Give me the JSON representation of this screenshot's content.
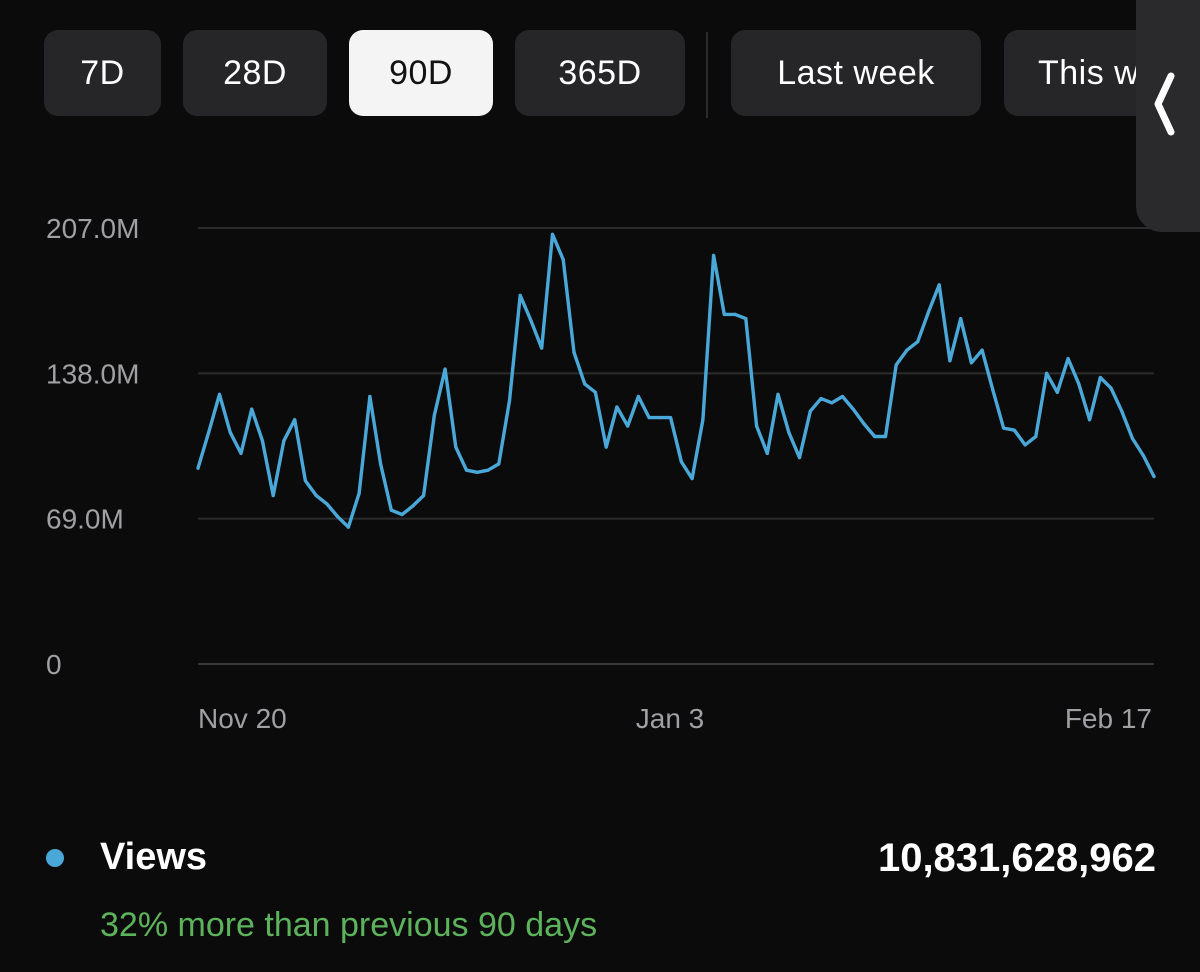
{
  "range_tabs": [
    {
      "label": "7D",
      "active": false
    },
    {
      "label": "28D",
      "active": false
    },
    {
      "label": "90D",
      "active": true
    },
    {
      "label": "365D",
      "active": false
    },
    {
      "label": "Last week",
      "active": false
    },
    {
      "label": "This week",
      "active": false
    }
  ],
  "side_handle": {
    "icon": "chevron-left-icon"
  },
  "chart_data": {
    "type": "line",
    "y_ticks": [
      "207.0M",
      "138.0M",
      "69.0M",
      "0"
    ],
    "y_tick_values": [
      207000000,
      138000000,
      69000000,
      0
    ],
    "ylim": [
      0,
      207000000
    ],
    "x_ticks": [
      "Nov 20",
      "Jan 3",
      "Feb 17"
    ],
    "grid": true,
    "line_color": "#4aa8d8",
    "series": [
      {
        "name": "Views",
        "values": [
          93000000.0,
          110000000.0,
          128000000.0,
          110000000.0,
          100000000.0,
          121000000.0,
          106000000.0,
          80000000.0,
          106000000.0,
          116000000.0,
          87000000.0,
          80000000.0,
          76000000.0,
          70000000.0,
          65000000.0,
          81000000.0,
          127000000.0,
          95000000.0,
          73000000.0,
          71000000.0,
          75000000.0,
          80000000.0,
          118000000.0,
          140000000.0,
          103000000.0,
          92000000.0,
          91000000.0,
          92000000.0,
          95000000.0,
          125000000.0,
          175000000.0,
          163000000.0,
          150000000.0,
          204000000.0,
          192000000.0,
          148000000.0,
          133000000.0,
          129000000.0,
          103000000.0,
          122000000.0,
          113000000.0,
          127000000.0,
          117000000.0,
          117000000.0,
          117000000.0,
          96000000.0,
          88000000.0,
          116000000.0,
          194000000.0,
          166000000.0,
          166000000.0,
          164000000.0,
          113000000.0,
          100000000.0,
          128000000.0,
          110000000.0,
          98000000.0,
          120000000.0,
          126000000.0,
          124000000.0,
          127000000.0,
          121000000.0,
          114000000.0,
          108000000.0,
          108000000.0,
          142000000.0,
          149000000.0,
          153000000.0,
          167000000.0,
          180000000.0,
          144000000.0,
          164000000.0,
          143000000.0,
          149000000.0,
          130000000.0,
          112000000.0,
          111000000.0,
          104000000.0,
          108000000.0,
          138000000.0,
          129000000.0,
          145000000.0,
          133000000.0,
          116000000.0,
          136000000.0,
          131000000.0,
          120000000.0,
          107000000.0,
          99000000.0,
          89000000.0
        ]
      }
    ]
  },
  "metric": {
    "label": "Views",
    "value": "10,831,628,962",
    "comparison": "32% more than previous 90 days",
    "dot_color": "#4aa8d8"
  }
}
